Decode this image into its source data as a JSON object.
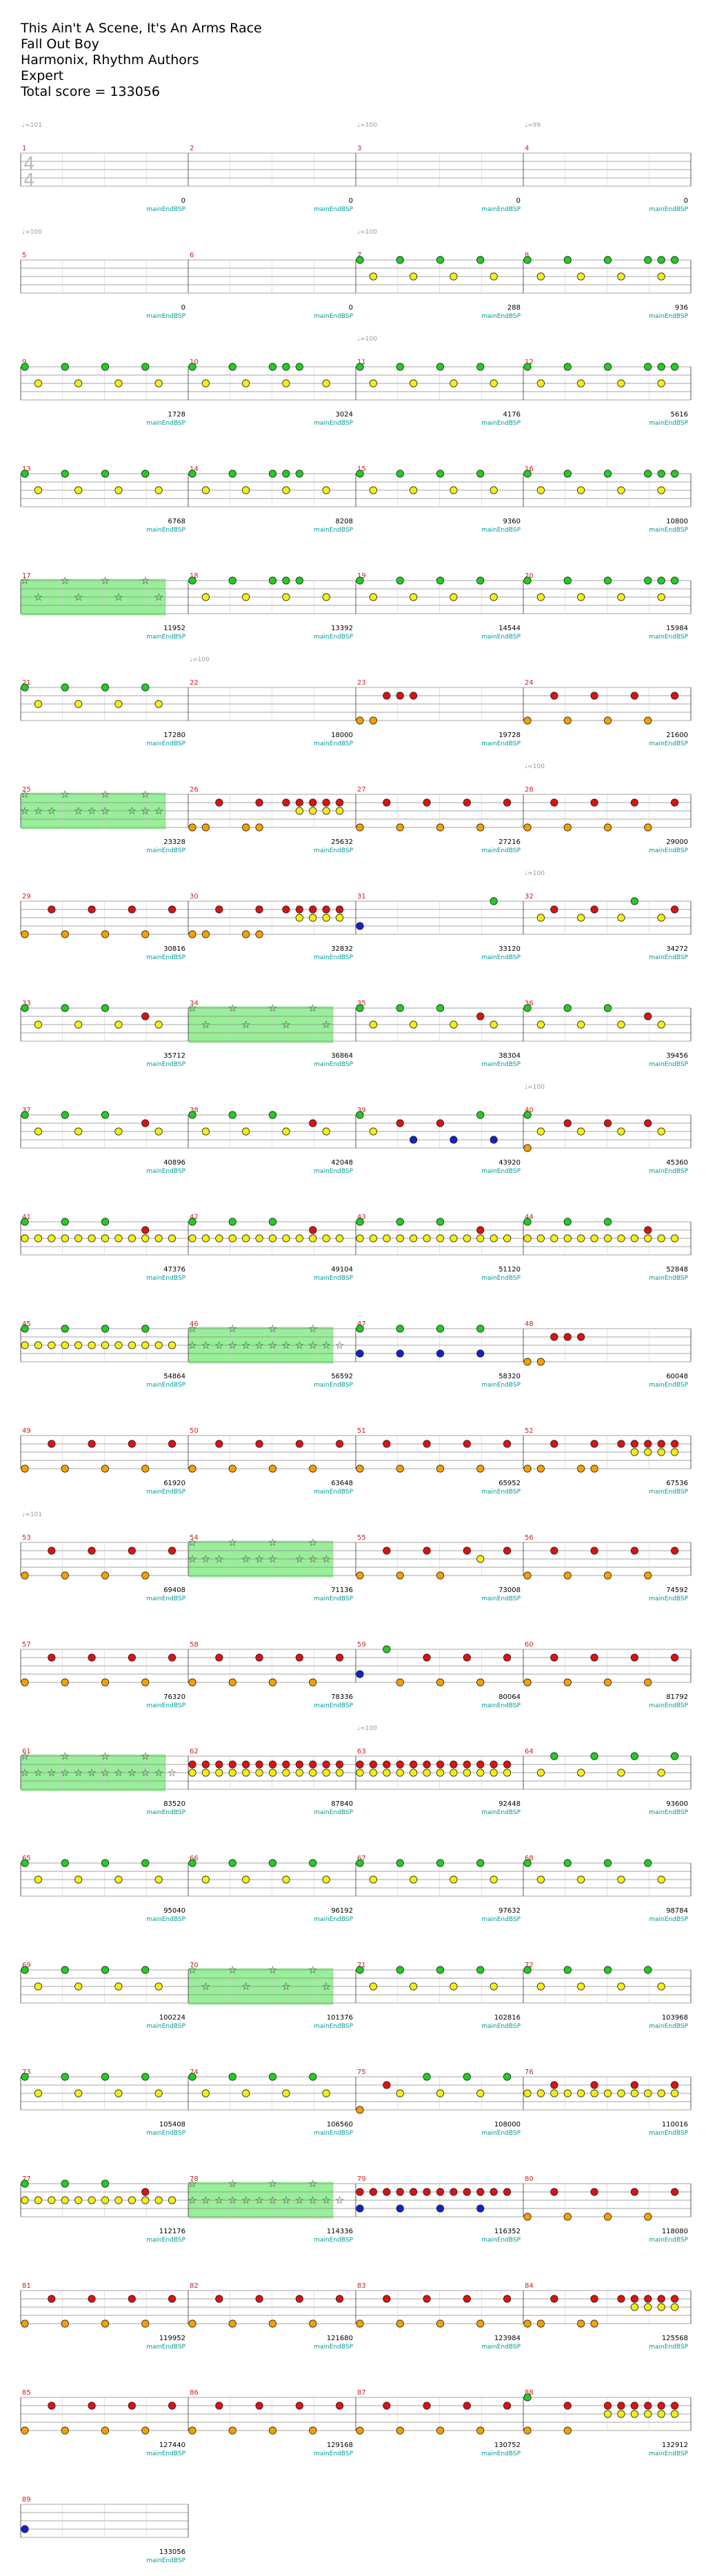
{
  "song": {
    "title": "This Ain't A Scene, It's An Arms Race",
    "artist": "Fall Out Boy",
    "charter": "Harmonix, Rhythm Authors",
    "difficulty": "Expert",
    "total_score_label": "Total score = ",
    "total_score": "133056"
  },
  "time_signature": {
    "numerator": "4",
    "denominator": "4"
  },
  "tempo_markings": [
    "♩=101",
    "♩=100",
    "♩=99",
    "♩=100",
    "♩=100",
    "♩=100",
    "♩=100",
    "♩=100",
    "♩=100",
    "♩=100",
    "♩=101",
    "♩=100"
  ],
  "section_label": "mainEndBSP",
  "colors": {
    "green": "#22cc22",
    "red": "#dd1111",
    "yellow": "#f5ee11",
    "blue": "#1122cc",
    "orange": "#f5a000",
    "starpower": "#99ee99",
    "measure_number": "#cc2222",
    "score_text": "#000000",
    "label_text": "#009999"
  },
  "measures": [
    {
      "n": "1",
      "score": "0"
    },
    {
      "n": "2",
      "score": "0"
    },
    {
      "n": "3",
      "score": "0"
    },
    {
      "n": "4",
      "score": "0"
    },
    {
      "n": "5",
      "score": "0"
    },
    {
      "n": "6",
      "score": "0"
    },
    {
      "n": "7",
      "score": "288"
    },
    {
      "n": "8",
      "score": "936"
    },
    {
      "n": "9",
      "score": "1728"
    },
    {
      "n": "10",
      "score": "3024"
    },
    {
      "n": "11",
      "score": "4176"
    },
    {
      "n": "12",
      "score": "5616"
    },
    {
      "n": "13",
      "score": "6768"
    },
    {
      "n": "14",
      "score": "8208"
    },
    {
      "n": "15",
      "score": "9360"
    },
    {
      "n": "16",
      "score": "10800"
    },
    {
      "n": "17",
      "score": "11952"
    },
    {
      "n": "18",
      "score": "13392"
    },
    {
      "n": "19",
      "score": "14544"
    },
    {
      "n": "20",
      "score": "15984"
    },
    {
      "n": "21",
      "score": "17280"
    },
    {
      "n": "22",
      "score": "18000"
    },
    {
      "n": "23",
      "score": "19728"
    },
    {
      "n": "24",
      "score": "21600"
    },
    {
      "n": "25",
      "score": "23328"
    },
    {
      "n": "26",
      "score": "25632"
    },
    {
      "n": "27",
      "score": "27216"
    },
    {
      "n": "28",
      "score": "29000"
    },
    {
      "n": "29",
      "score": "30816"
    },
    {
      "n": "30",
      "score": "32832"
    },
    {
      "n": "31",
      "score": "33120"
    },
    {
      "n": "32",
      "score": "34272"
    },
    {
      "n": "33",
      "score": "35712"
    },
    {
      "n": "34",
      "score": "36864"
    },
    {
      "n": "35",
      "score": "38304"
    },
    {
      "n": "36",
      "score": "39456"
    },
    {
      "n": "37",
      "score": "40896"
    },
    {
      "n": "38",
      "score": "42048"
    },
    {
      "n": "39",
      "score": "43920"
    },
    {
      "n": "40",
      "score": "45360"
    },
    {
      "n": "41",
      "score": "47376"
    },
    {
      "n": "42",
      "score": "49104"
    },
    {
      "n": "43",
      "score": "51120"
    },
    {
      "n": "44",
      "score": "52848"
    },
    {
      "n": "45",
      "score": "54864"
    },
    {
      "n": "46",
      "score": "56592"
    },
    {
      "n": "47",
      "score": "58320"
    },
    {
      "n": "48",
      "score": "60048"
    },
    {
      "n": "49",
      "score": "61920"
    },
    {
      "n": "50",
      "score": "63648"
    },
    {
      "n": "51",
      "score": "65952"
    },
    {
      "n": "52",
      "score": "67536"
    },
    {
      "n": "53",
      "score": "69408"
    },
    {
      "n": "54",
      "score": "71136"
    },
    {
      "n": "55",
      "score": "73008"
    },
    {
      "n": "56",
      "score": "74592"
    },
    {
      "n": "57",
      "score": "76320"
    },
    {
      "n": "58",
      "score": "78336"
    },
    {
      "n": "59",
      "score": "80064"
    },
    {
      "n": "60",
      "score": "81792"
    },
    {
      "n": "61",
      "score": "83520"
    },
    {
      "n": "62",
      "score": "87840"
    },
    {
      "n": "63",
      "score": "92448"
    },
    {
      "n": "64",
      "score": "93600"
    },
    {
      "n": "65",
      "score": "95040"
    },
    {
      "n": "66",
      "score": "96192"
    },
    {
      "n": "67",
      "score": "97632"
    },
    {
      "n": "68",
      "score": "98784"
    },
    {
      "n": "69",
      "score": "100224"
    },
    {
      "n": "70",
      "score": "101376"
    },
    {
      "n": "71",
      "score": "102816"
    },
    {
      "n": "72",
      "score": "103968"
    },
    {
      "n": "73",
      "score": "105408"
    },
    {
      "n": "74",
      "score": "106560"
    },
    {
      "n": "75",
      "score": "108000"
    },
    {
      "n": "76",
      "score": "110016"
    },
    {
      "n": "77",
      "score": "112176"
    },
    {
      "n": "78",
      "score": "114336"
    },
    {
      "n": "79",
      "score": "116352"
    },
    {
      "n": "80",
      "score": "118080"
    },
    {
      "n": "81",
      "score": "119952"
    },
    {
      "n": "82",
      "score": "121680"
    },
    {
      "n": "83",
      "score": "123984"
    },
    {
      "n": "84",
      "score": "125568"
    },
    {
      "n": "85",
      "score": "127440"
    },
    {
      "n": "86",
      "score": "129168"
    },
    {
      "n": "87",
      "score": "130752"
    },
    {
      "n": "88",
      "score": "132912"
    },
    {
      "n": "89",
      "score": "133056"
    }
  ],
  "measure_notes": {
    "7": "G..G..G..G..|.Y..Y..Y..Y..",
    "8": "G..G..G..GGG|.Y..Y..Y..Y..",
    "9": "G..G..G..G..|.Y..Y..Y..Y..",
    "10": "G..G..GGG...|.Y..Y..Y..Y..",
    "11": "G..G..G..G..|.Y..Y..Y..Y..",
    "12": "G..G..G..GGG|.Y..Y..Y..Y..",
    "13": "G..G..G..G..|.Y..Y..Y..Y..",
    "14": "G..G..GGG...|.Y..Y..Y..Y..",
    "15": "G..G..G..G..|.Y..Y..Y..Y..",
    "16": "G..G..G..GGG|.Y..Y..Y..Y..",
    "17": "S..S..S..S..|.S..S..S..S..",
    "18": "G..G..GGG...|.Y..Y..Y..Y..",
    "19": "G..G..G..G..|.Y..Y..Y..Y..",
    "20": "G..G..G..GGG|.Y..Y..Y..Y..",
    "21": "G..G..G..G..|.Y..Y..Y..Y..",
    "22": "",
    "23": "..RRR.......|OO..........",
    "24": "..R..R..R..R|O..O..O..O..",
    "25": "S..S..S..S..|SSS.SSS.SSS.",
    "26": "..R..R.RRRRR|OO..OO..YYYY",
    "27": "..R..R..R..R|O..O..O..O..",
    "28": "..R..R..R..R|O..O..O..O..",
    "29": "..R..R..R..R|O..O..O..O..",
    "30": "..R..R.RRRRR|OO..OO..YYYY",
    "31": "..........G.|B...........",
    "32": "..R..R..G..R|.Y..Y..Y..Y.",
    "33": "G..G..G..R..|.Y..Y..Y..Y..",
    "34": "S..S..S..S..|.S..S..S..S..",
    "35": "G..G..G..R..|.Y..Y..Y..Y..",
    "36": "G..G..G..R..|.Y..Y..Y..Y..",
    "37": "G..G..G..R..|.Y..Y..Y..Y..",
    "38": "G..G..G..R..|.Y..Y..Y..Y..",
    "39": "G..R..R..G..|.Y..B..B..B..",
    "40": "G..R..R..R..|OY..Y..Y..Y..",
    "41": "G..G..G..R..|YYYYYYYYYYYY",
    "42": "G..G..G..R..|YYYYYYYYYYYY",
    "43": "G..G..G..R..|YYYYYYYYYYYY",
    "44": "G..G..G..R..|YYYYYYYYYYYY",
    "45": "G..G..G..G..|YYYYYYYYYYYY",
    "46": "S..S..S..S..|SSSSSSSSSSSS",
    "47": "G..G..G..G..|B..B..B..B..",
    "48": "..RRR.......|OO..........",
    "49": "..R..R..R..R|O..O..O..O..",
    "50": "..R..R..R..R|O..O..O..O..",
    "51": "..R..R..R..R|O..O..O..O..",
    "52": "..R..R.RRRRR|OO..OO..YYYY",
    "53": "..R..R..R..R|O..O..O..O..",
    "54": "S..S..S..S..|SSS.SSS.SSS.",
    "55": "..R..R..R..R|O..O..O..Y..",
    "56": "..R..R..R..R|O..O..O..O..",
    "57": "..R..R..R..R|O..O..O..O..",
    "58": "..R..R..R..R|O..O..O..O..",
    "59": "..G..R..R..R|B..O..O..O..",
    "60": "..R..R..R..R|O..O..O..O..",
    "61": "S..S..S..S..|SSSSSSSSSSSS",
    "62": "RRRRRRRRRRRR|YYYYYYYYYYYY",
    "63": "RRRRRRRRRRRR|YYYYYYYYYYYY",
    "64": "..G..G..G..G|.Y..Y..Y..Y.",
    "65": "G..G..G..G..|.Y..Y..Y..Y..",
    "66": "G..G..G..G..|.Y..Y..Y..Y..",
    "67": "G..G..G..G..|.Y..Y..Y..Y..",
    "68": "G..G..G..G..|.Y..Y..Y..Y..",
    "69": "G..G..G..G..|.Y..Y..Y..Y..",
    "70": "S..S..S..S..|.S..S..S..S..",
    "71": "G..G..G..G..|.Y..Y..Y..Y..",
    "72": "G..G..G..G..|.Y..Y..Y..Y..",
    "73": "G..G..G..G..|.Y..Y..Y..Y..",
    "74": "G..G..G..G..|.Y..Y..Y..Y..",
    "75": "..R..G..G..G|O..Y..Y..Y..",
    "76": "..R..R..R..R|YYYYYYYYYYYY",
    "77": "G..G..G..R..|YYYYYYYYYYYY",
    "78": "S..S..S..S..|SSSSSSSSSSSS",
    "79": "RRRRRRRRRRRR|B..B..B..B..",
    "80": "..R..R..R..R|O..O..O..O..",
    "81": "..R..R..R..R|O..O..O..O..",
    "82": "..R..R..R..R|O..O..O..O..",
    "83": "..R..R..R..R|O..O..O..O..",
    "84": "..R..R.RRRRR|OO..OO..YYYY",
    "85": "..R..R..R..R|O..O..O..O..",
    "86": "..R..R..R..R|O..O..O..O..",
    "87": "..R..R..R..R|O..O..O..O..",
    "88": "G..R..RRRRRR|O..O..YYYYYY",
    "89": "|B..........."
  },
  "starpower_measures": [
    "17",
    "25",
    "34",
    "46",
    "54",
    "61",
    "70",
    "78"
  ]
}
